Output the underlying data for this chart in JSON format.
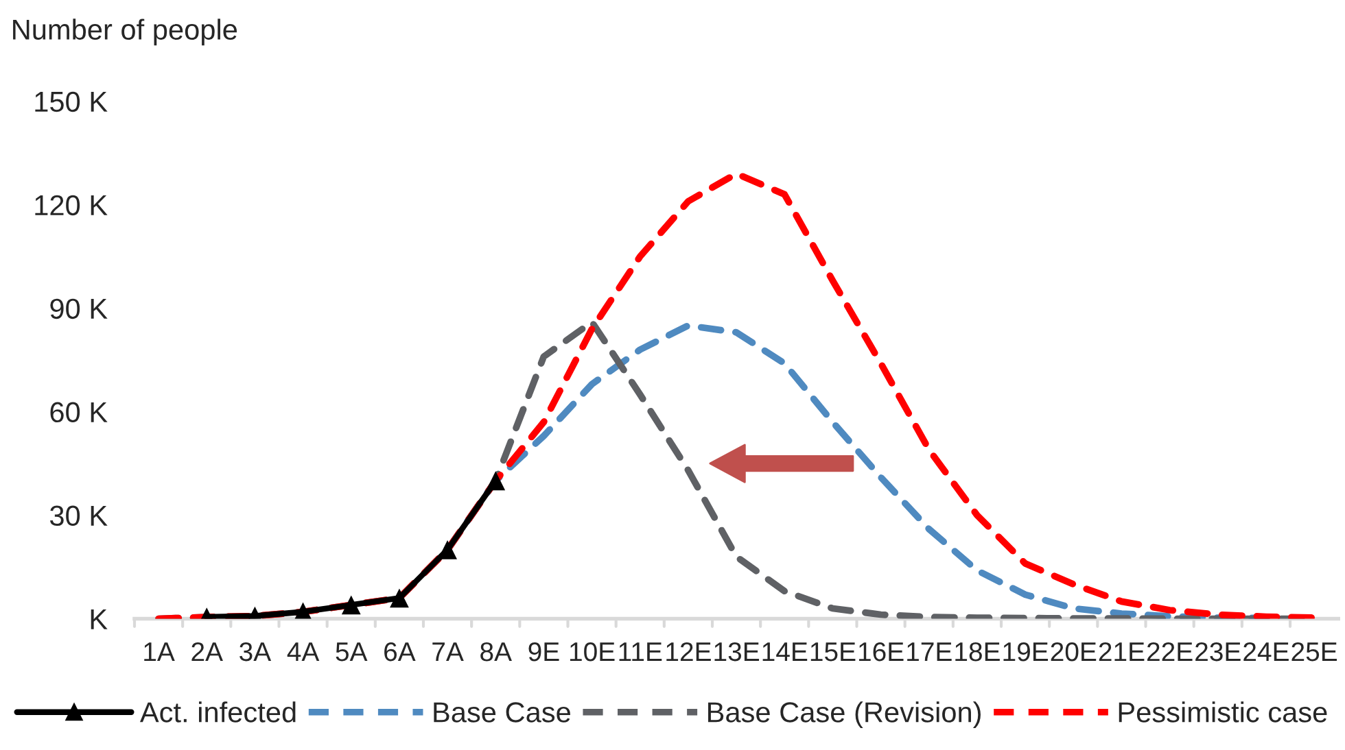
{
  "chart_data": {
    "type": "line",
    "ylabel": "Number of people",
    "categories": [
      "1A",
      "2A",
      "3A",
      "4A",
      "5A",
      "6A",
      "7A",
      "8A",
      "9E",
      "10E",
      "11E",
      "12E",
      "13E",
      "14E",
      "15E",
      "16E",
      "17E",
      "18E",
      "19E",
      "20E",
      "21E",
      "22E",
      "23E",
      "24E",
      "25E"
    ],
    "series": [
      {
        "name": "Act. infected",
        "color": "#000000",
        "marker": "triangle",
        "line_style": "solid",
        "values": [
          null,
          0.5,
          0.8,
          2,
          4,
          6,
          20,
          40,
          null,
          null,
          null,
          null,
          null,
          null,
          null,
          null,
          null,
          null,
          null,
          null,
          null,
          null,
          null,
          null,
          null
        ]
      },
      {
        "name": "Base Case",
        "color": "#4f8ac0",
        "marker": "none",
        "line_style": "dashed",
        "values": [
          null,
          null,
          null,
          null,
          null,
          null,
          20,
          40,
          53,
          68,
          78,
          85,
          83,
          74,
          57,
          41,
          26,
          14,
          7,
          3,
          1.5,
          0.7,
          0.3,
          0.2,
          null
        ]
      },
      {
        "name": "Base Case (Revision)",
        "color": "#5f6165",
        "marker": "none",
        "line_style": "dashed",
        "values": [
          0,
          0.5,
          0.8,
          2,
          4,
          6,
          20,
          40,
          76,
          86,
          65,
          43,
          18,
          8,
          3,
          1.2,
          0.5,
          0.3,
          0.2,
          0.1,
          0.1,
          0,
          0,
          0,
          0
        ]
      },
      {
        "name": "Pessimistic case",
        "color": "#ff0000",
        "marker": "none",
        "line_style": "dashed",
        "values": [
          0,
          0.5,
          0.8,
          2,
          4,
          6,
          20,
          40,
          57,
          84,
          105,
          121,
          129,
          123,
          98,
          74,
          49,
          30,
          16,
          10,
          5,
          2.5,
          1.2,
          0.6,
          0.3
        ]
      }
    ],
    "ylim": [
      0,
      150
    ],
    "yticks": [
      {
        "value": 0,
        "label": "K"
      },
      {
        "value": 30,
        "label": "30 K"
      },
      {
        "value": 60,
        "label": "60 K"
      },
      {
        "value": 90,
        "label": "90 K"
      },
      {
        "value": 120,
        "label": "120 K"
      },
      {
        "value": 150,
        "label": "150 K"
      }
    ],
    "grid": false,
    "legend": "bottom"
  }
}
